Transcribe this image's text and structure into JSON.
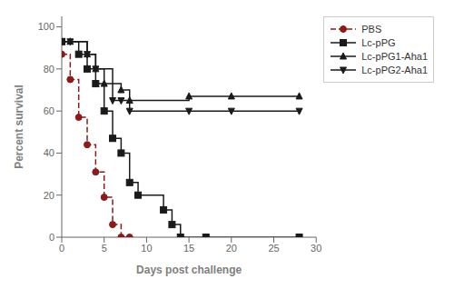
{
  "chart_data": {
    "type": "step",
    "xlabel": "Days post challenge",
    "ylabel": "Percent survival",
    "xlim": [
      0,
      30
    ],
    "ylim": [
      0,
      105
    ],
    "xticks": [
      0,
      5,
      10,
      15,
      20,
      25,
      30
    ],
    "yticks": [
      0,
      20,
      40,
      60,
      80,
      100
    ],
    "grid": false,
    "legend": "upper right",
    "series": [
      {
        "name": "PBS",
        "color": "#8B1A1A",
        "line_style": "dashed",
        "marker": "circle",
        "x": [
          0,
          1,
          2,
          3,
          4,
          5,
          6,
          7,
          8
        ],
        "values": [
          87,
          75,
          57,
          44,
          31,
          19,
          6,
          0,
          0
        ]
      },
      {
        "name": "Lc-pPG",
        "color": "#1a1a1a",
        "line_style": "solid",
        "marker": "square",
        "x": [
          0,
          2,
          3,
          4,
          5,
          6,
          7,
          8,
          9,
          12,
          13,
          14,
          17,
          28
        ],
        "values": [
          93,
          87,
          80,
          73,
          60,
          47,
          40,
          26,
          20,
          13,
          6,
          0,
          0,
          0
        ]
      },
      {
        "name": "Lc-pPG1-Aha1",
        "color": "#1a1a1a",
        "line_style": "solid",
        "marker": "triangle-up",
        "x": [
          0,
          1,
          3,
          4,
          5,
          7,
          8,
          15,
          20,
          28
        ],
        "values": [
          93,
          93,
          87,
          80,
          73,
          70,
          65,
          67,
          67,
          67
        ]
      },
      {
        "name": "Lc-pPG2-Aha1",
        "color": "#1a1a1a",
        "line_style": "solid",
        "marker": "triangle-down",
        "x": [
          0,
          1,
          3,
          4,
          6,
          7,
          8,
          15,
          20,
          28
        ],
        "values": [
          93,
          93,
          87,
          80,
          65,
          65,
          60,
          60,
          60,
          60
        ]
      }
    ]
  }
}
